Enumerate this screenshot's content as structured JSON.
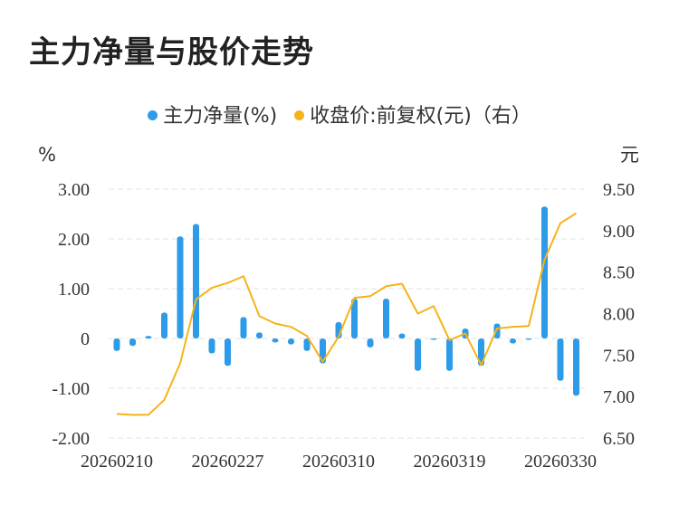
{
  "title": "主力净量与股价走势",
  "legend": [
    {
      "label": "主力净量(%)",
      "color": "#2e9be8"
    },
    {
      "label": "收盘价:前复权(元)（右）",
      "color": "#f5b31a"
    }
  ],
  "chart_data": {
    "type": "bar+line",
    "title": "主力净量与股价走势",
    "y_left_unit": "%",
    "y_right_unit": "元",
    "y_left_ticks": [
      "3.00",
      "2.00",
      "1.00",
      "0",
      "-1.00",
      "-2.00"
    ],
    "y_right_ticks": [
      "9.50",
      "9.00",
      "8.50",
      "8.00",
      "7.50",
      "7.00",
      "6.50"
    ],
    "y_left_range": [
      -2.0,
      3.0
    ],
    "y_right_range": [
      6.5,
      9.5
    ],
    "x_ticks": [
      {
        "label": "20260210",
        "index": 0
      },
      {
        "label": "20260227",
        "index": 7
      },
      {
        "label": "20260310",
        "index": 14
      },
      {
        "label": "20260319",
        "index": 21
      },
      {
        "label": "20260330",
        "index": 28
      }
    ],
    "grid": "horizontal-dashed",
    "legend_position": "top-center",
    "series": [
      {
        "name": "主力净量(%)",
        "type": "bar",
        "color": "#2e9be8",
        "values": [
          -0.25,
          -0.15,
          0.05,
          0.52,
          2.05,
          2.3,
          -0.3,
          -0.55,
          0.43,
          0.12,
          -0.08,
          -0.12,
          -0.25,
          -0.5,
          0.33,
          0.8,
          -0.18,
          0.8,
          0.1,
          -0.65,
          0.0,
          -0.65,
          0.2,
          -0.55,
          0.3,
          -0.1,
          0.0,
          2.65,
          -0.85,
          -1.15
        ]
      },
      {
        "name": "收盘价:前复权(元)（右）",
        "type": "line",
        "color": "#f5b31a",
        "values": [
          6.79,
          6.78,
          6.78,
          6.96,
          7.4,
          8.17,
          8.31,
          8.37,
          8.45,
          7.97,
          7.88,
          7.84,
          7.73,
          7.42,
          7.72,
          8.19,
          8.21,
          8.33,
          8.36,
          8.0,
          8.09,
          7.68,
          7.76,
          7.38,
          7.82,
          7.84,
          7.85,
          8.65,
          9.09,
          9.21
        ]
      }
    ]
  }
}
